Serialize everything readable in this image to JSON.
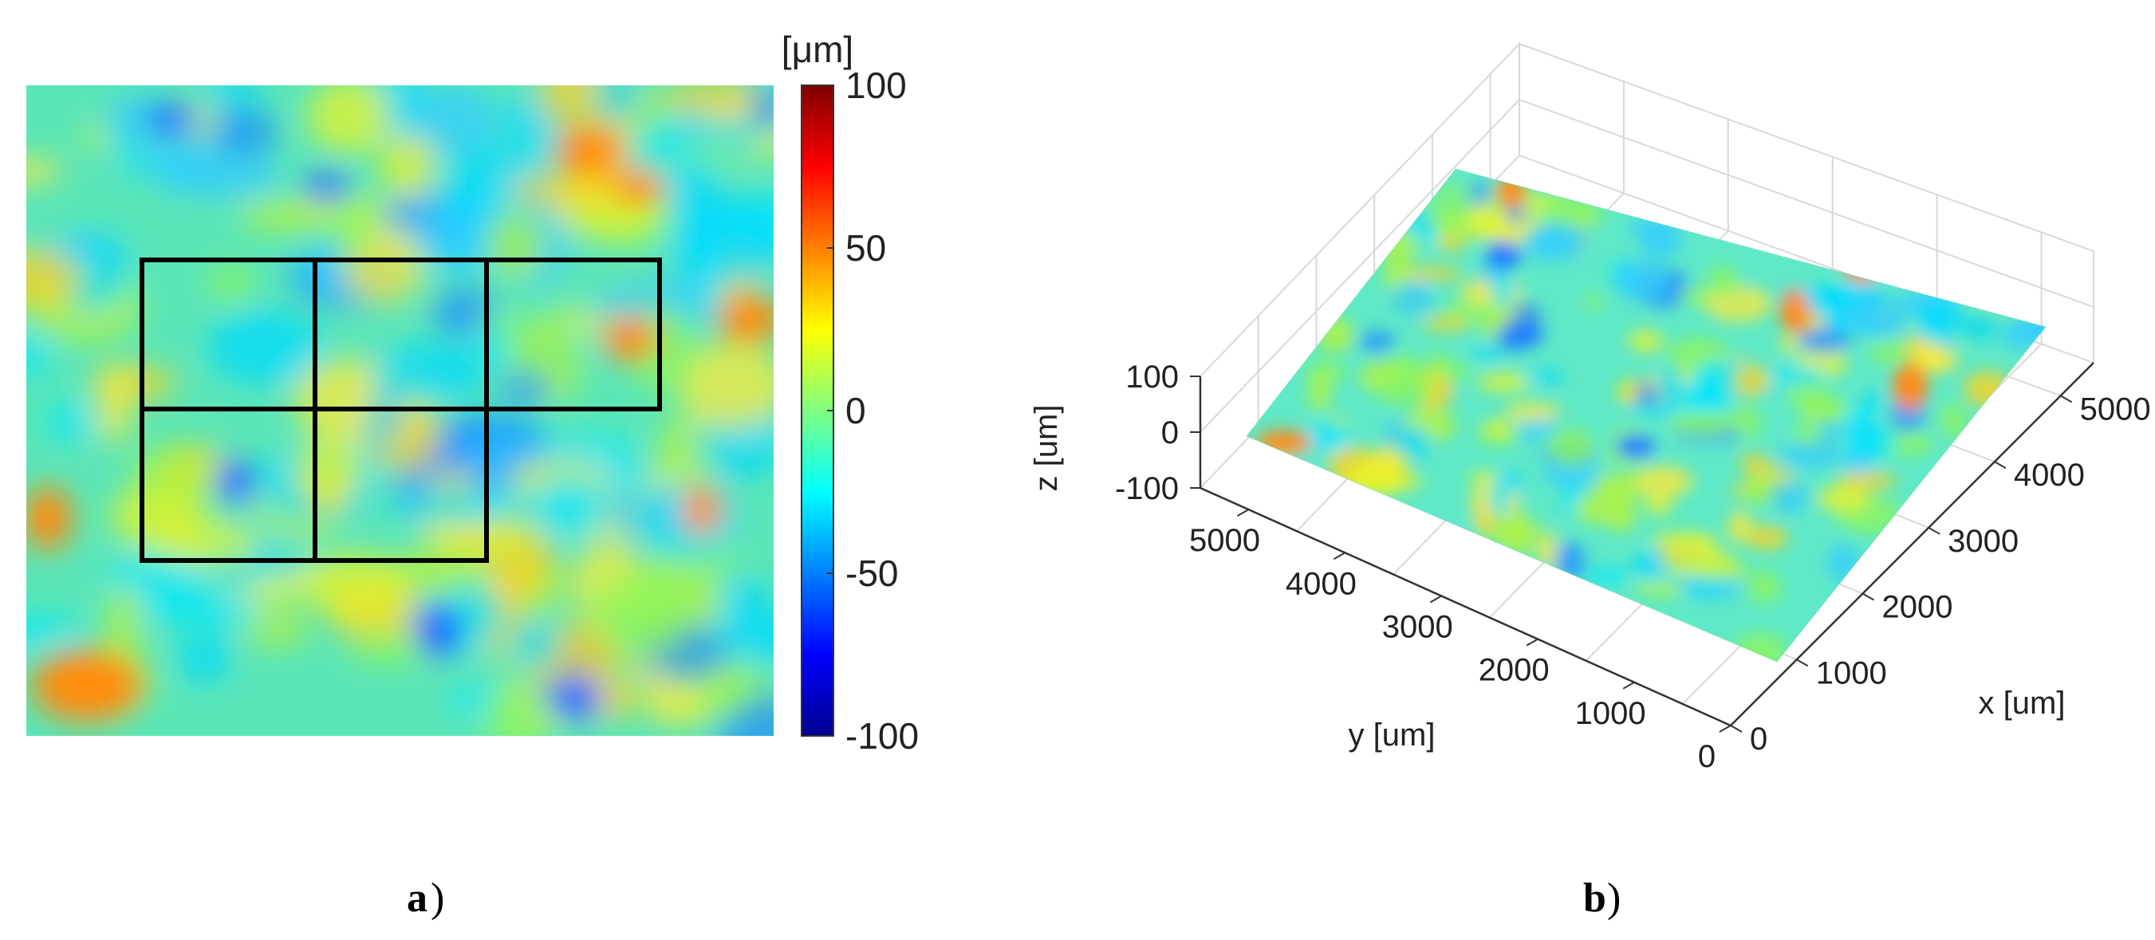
{
  "panels": {
    "a": {
      "label": "a",
      "paren": ")"
    },
    "b": {
      "label": "b",
      "paren": ")"
    }
  },
  "chart_data": [
    {
      "type": "heatmap",
      "title": "",
      "colorbar": {
        "unit": "[μm]",
        "range": [
          -100,
          100
        ],
        "ticks": [
          100,
          50,
          0,
          -50,
          -100
        ],
        "tick_labels": [
          "100",
          "50",
          "0",
          "-50",
          "-100"
        ],
        "colormap": "jet"
      },
      "overlay_grid": {
        "description": "black rectangular sub-region grid",
        "rows": 2,
        "cols_row1": 3,
        "cols_row2": 2
      }
    },
    {
      "type": "surface",
      "title": "",
      "xlabel": "x [um]",
      "ylabel": "y [um]",
      "zlabel": "z [um]",
      "xlim": [
        0,
        5500
      ],
      "ylim": [
        0,
        5500
      ],
      "zlim": [
        -100,
        100
      ],
      "x_ticks": [
        0,
        1000,
        2000,
        3000,
        4000,
        5000
      ],
      "x_tick_labels": [
        "0",
        "1000",
        "2000",
        "3000",
        "4000",
        "5000"
      ],
      "y_ticks": [
        0,
        1000,
        2000,
        3000,
        4000,
        5000
      ],
      "y_tick_labels": [
        "0",
        "1000",
        "2000",
        "3000",
        "4000",
        "5000"
      ],
      "z_ticks": [
        100,
        0,
        -100
      ],
      "z_tick_labels": [
        "100",
        "0",
        "-100"
      ],
      "grid": true,
      "colormap": "jet"
    }
  ]
}
